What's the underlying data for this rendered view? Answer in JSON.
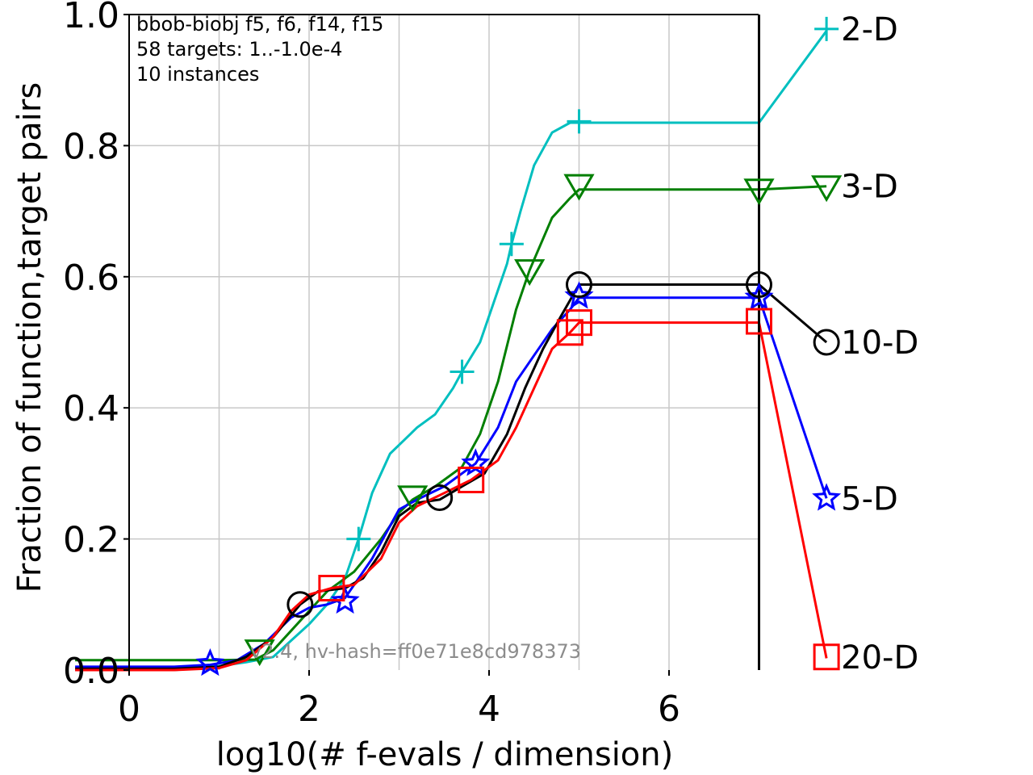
{
  "chart_data": {
    "type": "line",
    "xlabel": "log10(# f-evals / dimension)",
    "ylabel": "Fraction of function,target pairs",
    "xlim": [
      -0.6,
      7.6
    ],
    "ylim": [
      0.0,
      1.0
    ],
    "xticks": [
      "0",
      "2",
      "4",
      "6"
    ],
    "yticks": [
      "0.0",
      "0.2",
      "0.4",
      "0.6",
      "0.8",
      "1.0"
    ],
    "grid": true,
    "info_lines": [
      "bbob-biobj f5, f6, f14, f15",
      "58 targets: 1..-1.0e-4",
      "10 instances"
    ],
    "watermark": "v2.4, hv-hash=ff0e71e8cd978373",
    "budget_line_x": 7.0,
    "series": [
      {
        "name": "2-D",
        "color": "#00bfbf",
        "marker": "plus",
        "points": [
          [
            -0.6,
            0.0
          ],
          [
            0.5,
            0.0
          ],
          [
            1.0,
            0.006
          ],
          [
            1.3,
            0.012
          ],
          [
            1.6,
            0.02
          ],
          [
            1.8,
            0.045
          ],
          [
            2.0,
            0.07
          ],
          [
            2.2,
            0.1
          ],
          [
            2.4,
            0.14
          ],
          [
            2.55,
            0.2
          ],
          [
            2.7,
            0.27
          ],
          [
            2.9,
            0.33
          ],
          [
            3.05,
            0.35
          ],
          [
            3.2,
            0.37
          ],
          [
            3.4,
            0.39
          ],
          [
            3.6,
            0.43
          ],
          [
            3.7,
            0.455
          ],
          [
            3.9,
            0.5
          ],
          [
            4.05,
            0.56
          ],
          [
            4.2,
            0.62
          ],
          [
            4.25,
            0.65
          ],
          [
            4.35,
            0.7
          ],
          [
            4.5,
            0.77
          ],
          [
            4.7,
            0.82
          ],
          [
            4.9,
            0.835
          ],
          [
            5.0,
            0.835
          ],
          [
            7.0,
            0.835
          ],
          [
            7.75,
            0.975
          ]
        ],
        "marker_points": [
          [
            2.55,
            0.2
          ],
          [
            3.7,
            0.455
          ],
          [
            4.25,
            0.65
          ],
          [
            5.0,
            0.837
          ],
          [
            7.75,
            0.978
          ]
        ]
      },
      {
        "name": "3-D",
        "color": "#007f00",
        "marker": "triangle-down",
        "points": [
          [
            -0.6,
            0.015
          ],
          [
            1.0,
            0.015
          ],
          [
            1.4,
            0.016
          ],
          [
            1.6,
            0.03
          ],
          [
            1.8,
            0.06
          ],
          [
            2.0,
            0.09
          ],
          [
            2.2,
            0.12
          ],
          [
            2.5,
            0.15
          ],
          [
            2.8,
            0.2
          ],
          [
            3.0,
            0.24
          ],
          [
            3.15,
            0.26
          ],
          [
            3.4,
            0.28
          ],
          [
            3.7,
            0.31
          ],
          [
            3.9,
            0.36
          ],
          [
            4.1,
            0.44
          ],
          [
            4.3,
            0.55
          ],
          [
            4.45,
            0.61
          ],
          [
            4.7,
            0.69
          ],
          [
            4.9,
            0.72
          ],
          [
            5.0,
            0.733
          ],
          [
            7.0,
            0.733
          ],
          [
            7.75,
            0.738
          ]
        ],
        "marker_points": [
          [
            1.45,
            0.03
          ],
          [
            3.15,
            0.265
          ],
          [
            4.45,
            0.61
          ],
          [
            5.0,
            0.74
          ],
          [
            7.0,
            0.733
          ],
          [
            7.75,
            0.738
          ]
        ]
      },
      {
        "name": "5-D",
        "color": "#0000ff",
        "marker": "star",
        "points": [
          [
            -0.6,
            0.005
          ],
          [
            0.5,
            0.005
          ],
          [
            0.9,
            0.008
          ],
          [
            1.2,
            0.015
          ],
          [
            1.5,
            0.04
          ],
          [
            1.8,
            0.08
          ],
          [
            2.0,
            0.095
          ],
          [
            2.2,
            0.1
          ],
          [
            2.4,
            0.11
          ],
          [
            2.7,
            0.17
          ],
          [
            3.0,
            0.245
          ],
          [
            3.2,
            0.26
          ],
          [
            3.5,
            0.28
          ],
          [
            3.85,
            0.315
          ],
          [
            4.1,
            0.37
          ],
          [
            4.3,
            0.44
          ],
          [
            4.5,
            0.48
          ],
          [
            4.7,
            0.52
          ],
          [
            4.9,
            0.55
          ],
          [
            5.0,
            0.568
          ],
          [
            7.0,
            0.568
          ],
          [
            7.75,
            0.262
          ]
        ],
        "marker_points": [
          [
            0.9,
            0.01
          ],
          [
            2.4,
            0.105
          ],
          [
            3.85,
            0.315
          ],
          [
            5.0,
            0.57
          ],
          [
            7.0,
            0.568
          ],
          [
            7.75,
            0.262
          ]
        ]
      },
      {
        "name": "10-D",
        "color": "#000000",
        "marker": "circle",
        "points": [
          [
            -0.6,
            0.002
          ],
          [
            0.5,
            0.002
          ],
          [
            1.0,
            0.005
          ],
          [
            1.3,
            0.02
          ],
          [
            1.6,
            0.05
          ],
          [
            1.9,
            0.1
          ],
          [
            2.1,
            0.12
          ],
          [
            2.4,
            0.125
          ],
          [
            2.6,
            0.14
          ],
          [
            2.8,
            0.18
          ],
          [
            3.0,
            0.235
          ],
          [
            3.2,
            0.255
          ],
          [
            3.45,
            0.26
          ],
          [
            3.7,
            0.28
          ],
          [
            3.95,
            0.3
          ],
          [
            4.2,
            0.36
          ],
          [
            4.4,
            0.43
          ],
          [
            4.6,
            0.49
          ],
          [
            4.8,
            0.54
          ],
          [
            5.0,
            0.588
          ],
          [
            7.0,
            0.588
          ],
          [
            7.75,
            0.5
          ]
        ],
        "marker_points": [
          [
            1.9,
            0.1
          ],
          [
            3.45,
            0.263
          ],
          [
            5.0,
            0.588
          ],
          [
            7.0,
            0.588
          ],
          [
            7.75,
            0.5
          ]
        ]
      },
      {
        "name": "20-D",
        "color": "#ff0000",
        "marker": "square",
        "points": [
          [
            -0.6,
            0.0
          ],
          [
            0.5,
            0.0
          ],
          [
            1.0,
            0.003
          ],
          [
            1.3,
            0.015
          ],
          [
            1.6,
            0.05
          ],
          [
            1.8,
            0.09
          ],
          [
            2.0,
            0.115
          ],
          [
            2.25,
            0.125
          ],
          [
            2.5,
            0.13
          ],
          [
            2.8,
            0.17
          ],
          [
            3.0,
            0.225
          ],
          [
            3.2,
            0.25
          ],
          [
            3.5,
            0.27
          ],
          [
            3.8,
            0.29
          ],
          [
            4.1,
            0.32
          ],
          [
            4.3,
            0.37
          ],
          [
            4.5,
            0.43
          ],
          [
            4.7,
            0.49
          ],
          [
            4.9,
            0.515
          ],
          [
            5.0,
            0.53
          ],
          [
            7.0,
            0.53
          ],
          [
            7.75,
            0.018
          ]
        ],
        "marker_points": [
          [
            2.25,
            0.125
          ],
          [
            3.8,
            0.29
          ],
          [
            4.9,
            0.515
          ],
          [
            5.0,
            0.53
          ],
          [
            7.0,
            0.532
          ],
          [
            7.75,
            0.02
          ]
        ]
      }
    ]
  }
}
